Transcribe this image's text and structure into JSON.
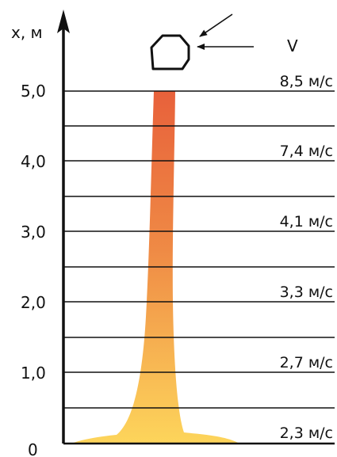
{
  "axis": {
    "label": "x, м",
    "ticks": [
      "0",
      "1,0",
      "2,0",
      "3,0",
      "4,0",
      "5,0"
    ]
  },
  "wind": {
    "label": "V"
  },
  "speeds": [
    "8,5 м/с",
    "7,4 м/с",
    "4,1 м/с",
    "3,3 м/с",
    "2,7 м/с",
    "2,3 м/с"
  ],
  "colors": {
    "plume_top": "#e8613b",
    "plume_bottom": "#fdd55b",
    "lines": "#111111"
  }
}
